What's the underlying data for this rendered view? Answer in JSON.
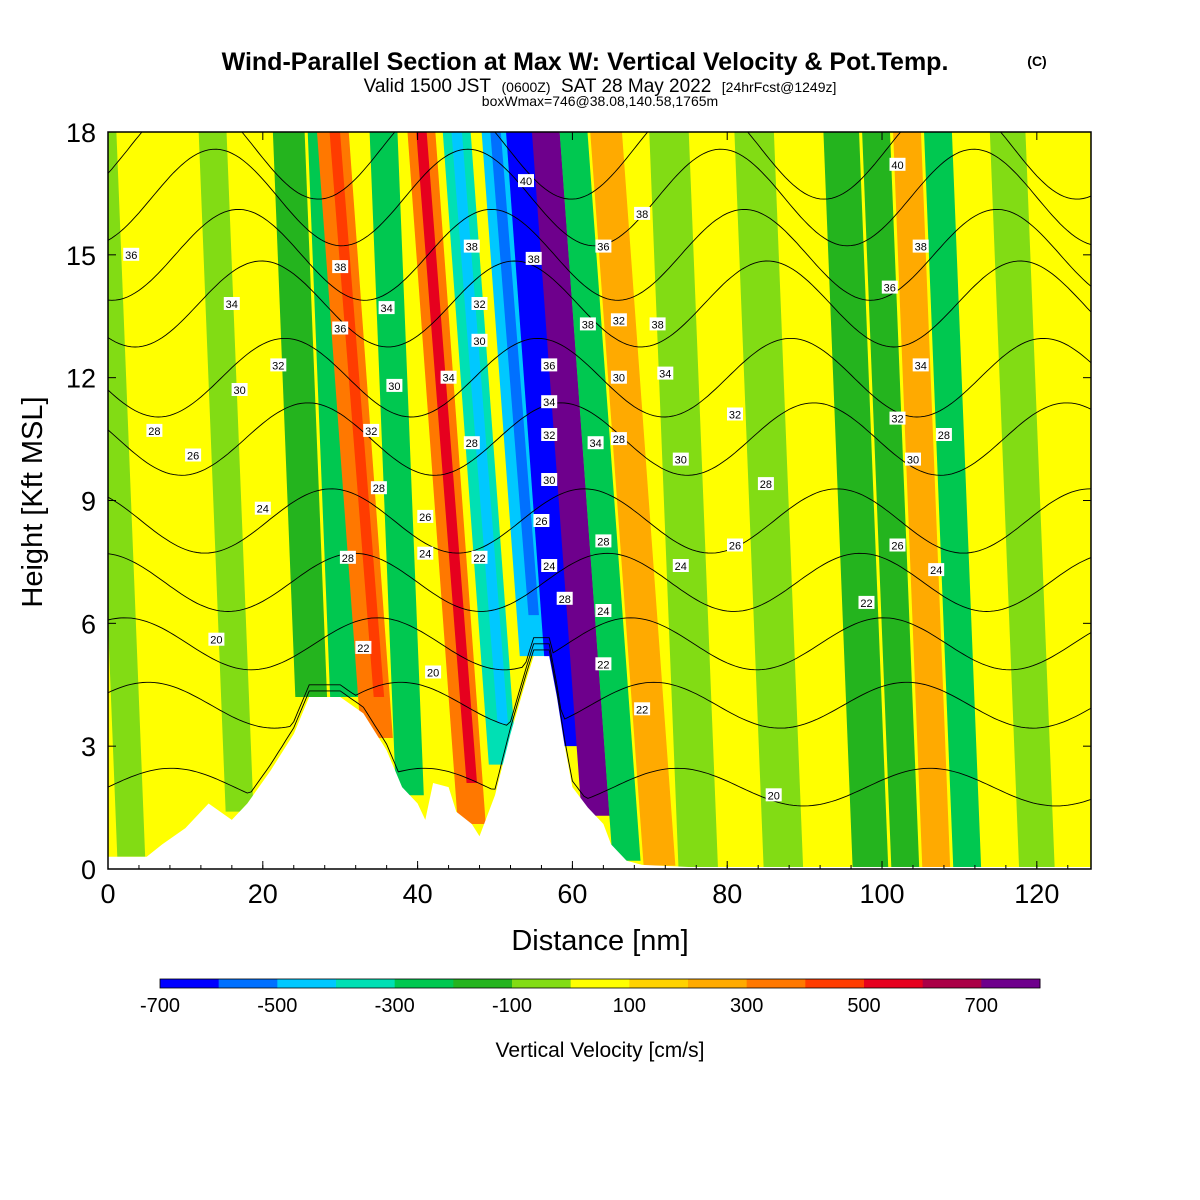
{
  "titles": {
    "main": "Wind-Parallel Section at Max W: Vertical Velocity & Pot.Temp.",
    "main_mark": "(C)",
    "valid_a": "Valid 1500 JST",
    "valid_b": "(0600Z)",
    "valid_c": "SAT 28 May 2022",
    "valid_d": "[24hrFcst@1249z]",
    "box": "boxWmax=746@38.08,140.58,1765m"
  },
  "chart_data": {
    "type": "heatmap",
    "xlabel": "Distance [nm]",
    "ylabel": "Height [Kft MSL]",
    "xlim": [
      0,
      127
    ],
    "ylim": [
      0,
      18
    ],
    "x_ticks": [
      "0",
      "20",
      "40",
      "60",
      "80",
      "100",
      "120"
    ],
    "x_tick_values": [
      0,
      20,
      40,
      60,
      80,
      100,
      120
    ],
    "y_ticks": [
      "0",
      "3",
      "6",
      "9",
      "12",
      "15",
      "18"
    ],
    "y_tick_values": [
      0,
      3,
      6,
      9,
      12,
      15,
      18
    ],
    "colorbar": {
      "title": "Vertical Velocity [cm/s]",
      "labels": [
        "-700",
        "-500",
        "-300",
        "-100",
        "100",
        "300",
        "500",
        "700"
      ],
      "label_values": [
        -700,
        -500,
        -300,
        -100,
        100,
        300,
        500,
        700
      ],
      "range": [
        -700,
        800
      ],
      "step": 100,
      "colors": [
        "#0000ff",
        "#0070ff",
        "#00c8ff",
        "#00e0b4",
        "#00c850",
        "#24b41e",
        "#82dc14",
        "#ffff00",
        "#ffd200",
        "#ffaa00",
        "#ff7800",
        "#ff3c00",
        "#e6001e",
        "#aa0046",
        "#6e008c"
      ]
    },
    "vertical_velocity_bands": [
      {
        "x": 3,
        "w": -80
      },
      {
        "x": 7,
        "w": 60
      },
      {
        "x": 13,
        "w": 50
      },
      {
        "x": 17,
        "w": -70
      },
      {
        "x": 21,
        "w": 60
      },
      {
        "x": 27,
        "w": -180
      },
      {
        "x": 30,
        "w": -250
      },
      {
        "x": 35,
        "w": 320
      },
      {
        "x": 39,
        "w": -220
      },
      {
        "x": 43,
        "w": 80
      },
      {
        "x": 47,
        "w": 360
      },
      {
        "x": 51,
        "w": -330
      },
      {
        "x": 55,
        "w": -420
      },
      {
        "x": 59,
        "w": -650
      },
      {
        "x": 63,
        "w": 720
      },
      {
        "x": 67,
        "w": -300
      },
      {
        "x": 71,
        "w": 280
      },
      {
        "x": 76,
        "w": -90
      },
      {
        "x": 82,
        "w": 80
      },
      {
        "x": 87,
        "w": -90
      },
      {
        "x": 93,
        "w": 70
      },
      {
        "x": 99,
        "w": -120
      },
      {
        "x": 103,
        "w": -200
      },
      {
        "x": 107,
        "w": 230
      },
      {
        "x": 111,
        "w": -220
      },
      {
        "x": 115,
        "w": 60
      },
      {
        "x": 120,
        "w": -90
      },
      {
        "x": 125,
        "w": 70
      }
    ],
    "terrain": [
      {
        "x": 0,
        "h": 0.3
      },
      {
        "x": 5,
        "h": 0.3
      },
      {
        "x": 7,
        "h": 0.6
      },
      {
        "x": 10,
        "h": 1.0
      },
      {
        "x": 13,
        "h": 1.6
      },
      {
        "x": 16,
        "h": 1.2
      },
      {
        "x": 18,
        "h": 1.6
      },
      {
        "x": 21,
        "h": 2.4
      },
      {
        "x": 24,
        "h": 3.3
      },
      {
        "x": 26,
        "h": 4.2
      },
      {
        "x": 30,
        "h": 4.2
      },
      {
        "x": 33,
        "h": 3.8
      },
      {
        "x": 36,
        "h": 2.9
      },
      {
        "x": 38,
        "h": 2.0
      },
      {
        "x": 40,
        "h": 1.6
      },
      {
        "x": 41,
        "h": 1.2
      },
      {
        "x": 42,
        "h": 2.1
      },
      {
        "x": 44,
        "h": 2.0
      },
      {
        "x": 45,
        "h": 1.4
      },
      {
        "x": 47,
        "h": 1.1
      },
      {
        "x": 48,
        "h": 0.8
      },
      {
        "x": 50,
        "h": 1.8
      },
      {
        "x": 52,
        "h": 3.3
      },
      {
        "x": 54,
        "h": 4.6
      },
      {
        "x": 55,
        "h": 5.2
      },
      {
        "x": 57,
        "h": 5.2
      },
      {
        "x": 58,
        "h": 4.2
      },
      {
        "x": 59,
        "h": 3.0
      },
      {
        "x": 60,
        "h": 2.0
      },
      {
        "x": 62,
        "h": 1.5
      },
      {
        "x": 64,
        "h": 1.1
      },
      {
        "x": 65,
        "h": 0.6
      },
      {
        "x": 67,
        "h": 0.2
      },
      {
        "x": 69,
        "h": 0.1
      },
      {
        "x": 75,
        "h": 0.05
      },
      {
        "x": 127,
        "h": 0.05
      }
    ],
    "theta_contours": [
      {
        "level": 20,
        "label": "20",
        "h": 2.0
      },
      {
        "level": 22,
        "label": "22",
        "h": 4.0
      },
      {
        "level": 24,
        "label": "24",
        "h": 5.5
      },
      {
        "level": 26,
        "label": "26",
        "h": 7.0
      },
      {
        "level": 28,
        "label": "28",
        "h": 8.5
      },
      {
        "level": 30,
        "label": "30",
        "h": 10.5
      },
      {
        "level": 32,
        "label": "32",
        "h": 12.0
      },
      {
        "level": 34,
        "label": "34",
        "h": 13.8
      },
      {
        "level": 36,
        "label": "36",
        "h": 15.0
      },
      {
        "level": 38,
        "label": "38",
        "h": 16.4
      },
      {
        "level": 40,
        "label": "40",
        "h": 17.6
      }
    ],
    "contour_labels": [
      {
        "text": "36",
        "x": 3,
        "y": 15.0
      },
      {
        "text": "34",
        "x": 16,
        "y": 13.8
      },
      {
        "text": "32",
        "x": 22,
        "y": 12.3
      },
      {
        "text": "30",
        "x": 17,
        "y": 11.7
      },
      {
        "text": "28",
        "x": 6,
        "y": 10.7
      },
      {
        "text": "26",
        "x": 11,
        "y": 10.1
      },
      {
        "text": "24",
        "x": 20,
        "y": 8.8
      },
      {
        "text": "20",
        "x": 14,
        "y": 5.6
      },
      {
        "text": "38",
        "x": 30,
        "y": 14.7
      },
      {
        "text": "36",
        "x": 30,
        "y": 13.2
      },
      {
        "text": "34",
        "x": 36,
        "y": 13.7
      },
      {
        "text": "30",
        "x": 37,
        "y": 11.8
      },
      {
        "text": "32",
        "x": 34,
        "y": 10.7
      },
      {
        "text": "28",
        "x": 35,
        "y": 9.3
      },
      {
        "text": "28",
        "x": 31,
        "y": 7.6
      },
      {
        "text": "22",
        "x": 33,
        "y": 5.4
      },
      {
        "text": "26",
        "x": 41,
        "y": 8.6
      },
      {
        "text": "24",
        "x": 41,
        "y": 7.7
      },
      {
        "text": "20",
        "x": 42,
        "y": 4.8
      },
      {
        "text": "38",
        "x": 47,
        "y": 15.2
      },
      {
        "text": "32",
        "x": 48,
        "y": 13.8
      },
      {
        "text": "30",
        "x": 48,
        "y": 12.9
      },
      {
        "text": "34",
        "x": 44,
        "y": 12.0
      },
      {
        "text": "28",
        "x": 47,
        "y": 10.4
      },
      {
        "text": "22",
        "x": 48,
        "y": 7.6
      },
      {
        "text": "40",
        "x": 54,
        "y": 16.8
      },
      {
        "text": "38",
        "x": 55,
        "y": 14.9
      },
      {
        "text": "36",
        "x": 57,
        "y": 12.3
      },
      {
        "text": "34",
        "x": 57,
        "y": 11.4
      },
      {
        "text": "32",
        "x": 57,
        "y": 10.6
      },
      {
        "text": "30",
        "x": 57,
        "y": 9.5
      },
      {
        "text": "26",
        "x": 56,
        "y": 8.5
      },
      {
        "text": "24",
        "x": 57,
        "y": 7.4
      },
      {
        "text": "28",
        "x": 59,
        "y": 6.6
      },
      {
        "text": "38",
        "x": 62,
        "y": 13.3
      },
      {
        "text": "32",
        "x": 66,
        "y": 13.4
      },
      {
        "text": "36",
        "x": 64,
        "y": 15.2
      },
      {
        "text": "30",
        "x": 66,
        "y": 12.0
      },
      {
        "text": "34",
        "x": 63,
        "y": 10.4
      },
      {
        "text": "28",
        "x": 66,
        "y": 10.5
      },
      {
        "text": "28",
        "x": 64,
        "y": 8.0
      },
      {
        "text": "24",
        "x": 64,
        "y": 6.3
      },
      {
        "text": "22",
        "x": 64,
        "y": 5.0
      },
      {
        "text": "38",
        "x": 69,
        "y": 16.0
      },
      {
        "text": "38",
        "x": 71,
        "y": 13.3
      },
      {
        "text": "34",
        "x": 72,
        "y": 12.1
      },
      {
        "text": "30",
        "x": 74,
        "y": 10.0
      },
      {
        "text": "24",
        "x": 74,
        "y": 7.4
      },
      {
        "text": "22",
        "x": 69,
        "y": 3.9
      },
      {
        "text": "32",
        "x": 81,
        "y": 11.1
      },
      {
        "text": "28",
        "x": 85,
        "y": 9.4
      },
      {
        "text": "26",
        "x": 81,
        "y": 7.9
      },
      {
        "text": "20",
        "x": 86,
        "y": 1.8
      },
      {
        "text": "40",
        "x": 102,
        "y": 17.2
      },
      {
        "text": "38",
        "x": 105,
        "y": 15.2
      },
      {
        "text": "36",
        "x": 101,
        "y": 14.2
      },
      {
        "text": "34",
        "x": 105,
        "y": 12.3
      },
      {
        "text": "32",
        "x": 102,
        "y": 11.0
      },
      {
        "text": "28",
        "x": 108,
        "y": 10.6
      },
      {
        "text": "30",
        "x": 104,
        "y": 10.0
      },
      {
        "text": "26",
        "x": 102,
        "y": 7.9
      },
      {
        "text": "24",
        "x": 107,
        "y": 7.3
      },
      {
        "text": "22",
        "x": 98,
        "y": 6.5
      }
    ]
  }
}
